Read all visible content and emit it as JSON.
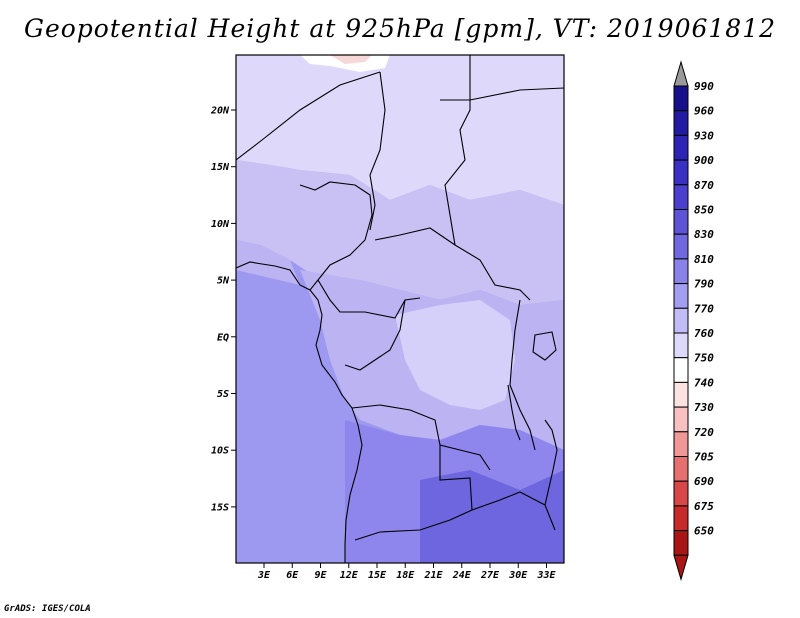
{
  "title": "Geopotential Height at 925hPa [gpm], VT: 2019061812",
  "footer": "GrADS: IGES/COLA",
  "colors": {
    "ocean": "#9d98f0",
    "sahara": "#ded9fb",
    "sahel": "#c9c1f4",
    "central": "#bbb3f2",
    "basin": "#d4d0fa",
    "south": "#8e86ec",
    "deep": "#6d66de",
    "white": "#ffffff",
    "pink": "#f6d8d8"
  },
  "map": {
    "lat_ticks": [
      "20N",
      "15N",
      "10N",
      "5N",
      "EQ",
      "5S",
      "10S",
      "15S"
    ],
    "lon_ticks": [
      "3E",
      "6E",
      "9E",
      "12E",
      "15E",
      "18E",
      "21E",
      "24E",
      "27E",
      "30E",
      "33E"
    ]
  },
  "colorbar": {
    "labels": [
      "990",
      "960",
      "930",
      "900",
      "870",
      "850",
      "830",
      "810",
      "790",
      "770",
      "760",
      "750",
      "740",
      "730",
      "720",
      "705",
      "690",
      "675",
      "650"
    ],
    "colors": [
      "#16108a",
      "#221aa3",
      "#2d24b5",
      "#3a30c4",
      "#4a40cd",
      "#5c53d5",
      "#7068df",
      "#8a82e8",
      "#a49ef0",
      "#c1bcf5",
      "#dcd9fb",
      "#ffffff",
      "#fde2e2",
      "#f8c0c0",
      "#f09898",
      "#e67070",
      "#d84848",
      "#c62a2a",
      "#a81616"
    ],
    "top_arrow_color": "#9a9a9a",
    "bottom_arrow_color": "#a81616"
  }
}
